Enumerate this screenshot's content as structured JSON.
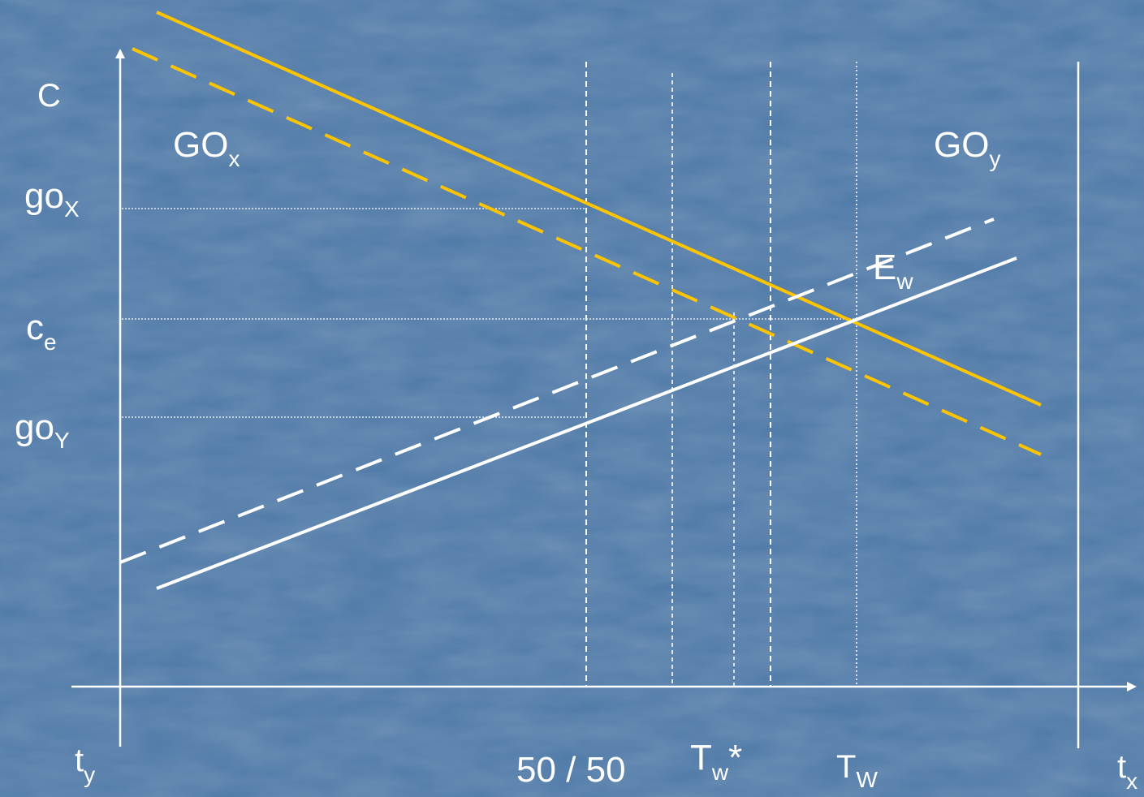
{
  "colors": {
    "background": "#4d78a6",
    "background_light": "#5a86b4",
    "axis": "#ffffff",
    "demand_curves": "#ffc400",
    "supply_curves": "#ffffff"
  },
  "labels": {
    "y_axis": "C",
    "region_left_main": "GO",
    "region_left_sub": "x",
    "region_right_main": "GO",
    "region_right_sub": "y",
    "go_x_main": "go",
    "go_x_sub": "X",
    "c_e_main": "c",
    "c_e_sub": "e",
    "go_y_main": "go",
    "go_y_sub": "Y",
    "e_w_main": "E",
    "e_w_sub": "w",
    "t_y_main": "t",
    "t_y_sub": "y",
    "fifty_fifty": "50 / 50",
    "t_w_star_main": "T",
    "t_w_star_sub": "w",
    "t_w_star_suffix": "*",
    "t_w_main": "T",
    "t_w_sub": "W",
    "t_x_main": "t",
    "t_x_sub": "x"
  }
}
